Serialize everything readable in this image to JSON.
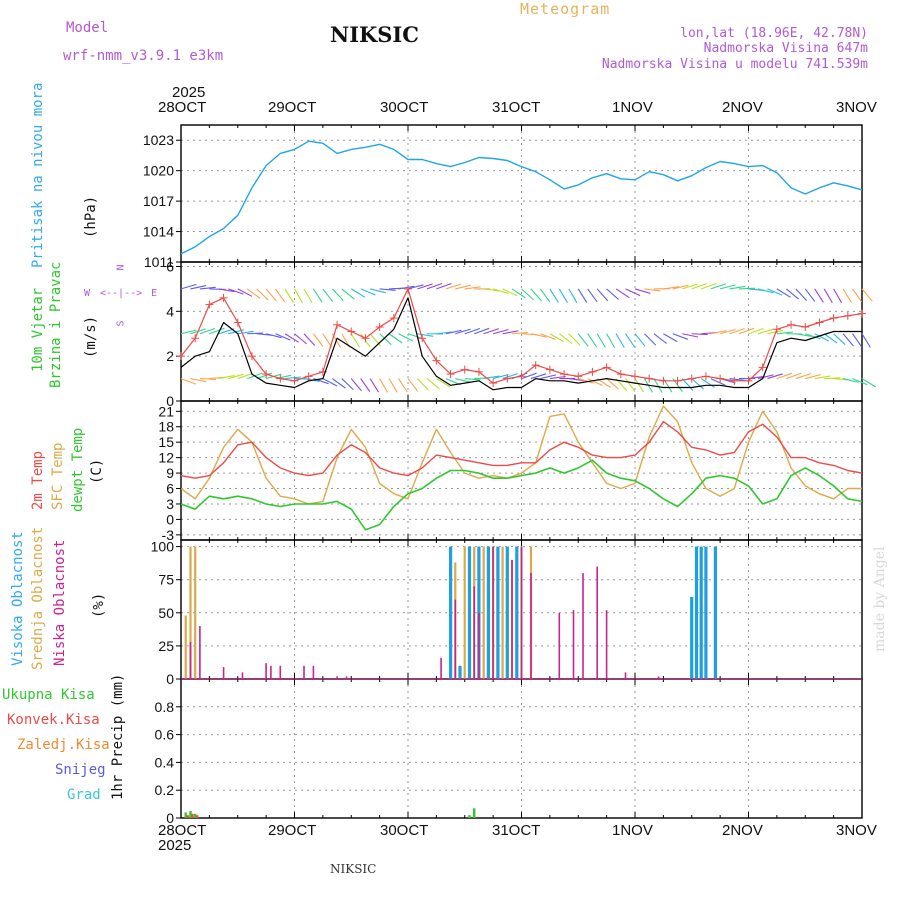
{
  "header": {
    "model_label": "Model",
    "model_name": "wrf-nmm_v3.9.1 e3km",
    "station": "NIKSIC",
    "meteogram_label": "Meteogram",
    "coords": "lon,lat (18.96E, 42.78N)",
    "altitude": "Nadmorska Visina 647m",
    "model_altitude": "Nadmorska Visina u modelu 741.539m",
    "year_top": "2025",
    "year_bottom": "2025",
    "footer_station": "NIKSIC",
    "made_by": "made by Angel"
  },
  "axis_dates": [
    "28OCT",
    "29OCT",
    "30OCT",
    "31OCT",
    "1NOV",
    "2NOV",
    "3NOV"
  ],
  "panel_labels": {
    "pressure": {
      "name": "Pritisak na nivou mora",
      "unit": "(hPa)"
    },
    "wind": {
      "name1": "10m Vjetar",
      "name2": "Brzina i Pravac",
      "unit": "(m/s)"
    },
    "wind_compass": {
      "n": "N",
      "w": "W",
      "e": "E",
      "s": "S"
    },
    "temp": {
      "name1": "2m Temp",
      "name2": "SFC Temp",
      "name3": "dewpt Temp",
      "unit": "(C)"
    },
    "cloud": {
      "name1": "Visoka Oblacnost",
      "name2": "Srednja Oblacnost",
      "name3": "Niska Oblacnost",
      "unit": "(%)"
    },
    "precip": {
      "name": "1hr Precip (mm)"
    }
  },
  "precip_legend": [
    "Ukupna Kisa",
    "Konvek.Kisa",
    "Zaledj.Kisa",
    "Snijeg",
    "Grad"
  ],
  "colors": {
    "pressure": "#1ea7e6",
    "temp2m": "#ec4b48",
    "sfc": "#dea94a",
    "dewpt": "#2fc82f",
    "wind_speed": "#000000",
    "gust": "#ec4b48",
    "cloud_high": "#1e9fe0",
    "cloud_mid": "#d9a94a",
    "cloud_low": "#c8238f",
    "rain_total": "#2fc82f",
    "rain_conv": "#ec4b48",
    "freezing": "#f08a2e",
    "snow": "#5a5ae0",
    "hail": "#39c8c8",
    "pressure_label": "#33aaee",
    "wind_label": "#2fc82f",
    "compass": "#b15ad6",
    "temp2m_label": "#ec4b48",
    "sfc_label": "#dea94a",
    "dewpt_label": "#2fc82f",
    "cloud_high_label": "#33aaee",
    "cloud_mid_label": "#dea94a",
    "cloud_low_label": "#d0208e",
    "legend_colors": [
      "#2fc82f",
      "#ec4b48",
      "#f08a2e",
      "#5a5ae0",
      "#39c8c8"
    ]
  },
  "chart_data": [
    {
      "type": "line",
      "title": "Pritisak na nivou mora",
      "ylabel": "(hPa)",
      "ylim": [
        1011,
        1024.5
      ],
      "yticks": [
        1011,
        1014,
        1017,
        1020,
        1023
      ],
      "x_unit": "hours from 28OCT 00UTC",
      "x": [
        0,
        3,
        6,
        9,
        12,
        15,
        18,
        21,
        24,
        27,
        30,
        33,
        36,
        39,
        42,
        45,
        48,
        51,
        54,
        57,
        60,
        63,
        66,
        69,
        72,
        75,
        78,
        81,
        84,
        87,
        90,
        93,
        96,
        99,
        102,
        105,
        108,
        111,
        114,
        117,
        120,
        123,
        126,
        129,
        132,
        135,
        138,
        141,
        144
      ],
      "values": [
        1011.8,
        1012.5,
        1013.5,
        1014.3,
        1015.6,
        1018.3,
        1020.5,
        1021.7,
        1022.1,
        1022.9,
        1022.7,
        1021.7,
        1022.1,
        1022.3,
        1022.6,
        1022.1,
        1021.1,
        1021.1,
        1020.7,
        1020.4,
        1020.8,
        1021.3,
        1021.2,
        1021.0,
        1020.4,
        1019.9,
        1019.1,
        1018.2,
        1018.6,
        1019.3,
        1019.7,
        1019.2,
        1019.1,
        1019.9,
        1019.6,
        1019.0,
        1019.5,
        1020.3,
        1020.9,
        1020.7,
        1020.4,
        1020.5,
        1019.8,
        1018.3,
        1017.7,
        1018.3,
        1018.8,
        1018.5,
        1018.1
      ]
    },
    {
      "type": "line",
      "title": "10m Vjetar Brzina i Pravac",
      "ylabel": "(m/s)",
      "ylim": [
        0,
        6.2
      ],
      "yticks": [
        0,
        2,
        4,
        6
      ],
      "barb_rows": [
        1,
        3,
        5
      ],
      "series": [
        {
          "name": "wind_speed",
          "x": [
            0,
            3,
            6,
            9,
            12,
            15,
            18,
            21,
            24,
            27,
            30,
            33,
            36,
            39,
            42,
            45,
            48,
            51,
            54,
            57,
            60,
            63,
            66,
            69,
            72,
            75,
            78,
            81,
            84,
            87,
            90,
            93,
            96,
            99,
            102,
            105,
            108,
            111,
            114,
            117,
            120,
            123,
            126,
            129,
            132,
            135,
            138,
            141,
            144
          ],
          "values": [
            1.5,
            2.0,
            2.2,
            3.5,
            3.0,
            1.2,
            0.8,
            0.7,
            0.6,
            0.9,
            1.0,
            2.8,
            2.4,
            2.0,
            2.6,
            3.2,
            4.6,
            2.0,
            1.1,
            0.7,
            0.8,
            0.9,
            0.5,
            0.6,
            0.6,
            1.0,
            0.9,
            0.9,
            0.8,
            0.9,
            1.0,
            0.9,
            0.8,
            0.7,
            0.6,
            0.6,
            0.6,
            0.7,
            0.7,
            0.6,
            0.6,
            1.0,
            2.6,
            2.8,
            2.7,
            2.9,
            3.1,
            3.1,
            3.1
          ]
        },
        {
          "name": "gust",
          "x": [
            0,
            3,
            6,
            9,
            12,
            15,
            18,
            21,
            24,
            27,
            30,
            33,
            36,
            39,
            42,
            45,
            48,
            51,
            54,
            57,
            60,
            63,
            66,
            69,
            72,
            75,
            78,
            81,
            84,
            87,
            90,
            93,
            96,
            99,
            102,
            105,
            108,
            111,
            114,
            117,
            120,
            123,
            126,
            129,
            132,
            135,
            138,
            141,
            144
          ],
          "values": [
            2.0,
            2.8,
            4.3,
            4.6,
            3.5,
            2.0,
            1.2,
            1.0,
            0.9,
            1.1,
            1.3,
            3.4,
            3.1,
            2.8,
            3.3,
            3.7,
            5.0,
            2.8,
            1.8,
            1.2,
            1.4,
            1.3,
            0.8,
            1.0,
            1.1,
            1.6,
            1.4,
            1.2,
            1.1,
            1.3,
            1.5,
            1.2,
            1.1,
            1.0,
            0.9,
            0.9,
            1.0,
            1.1,
            1.0,
            0.9,
            0.9,
            1.5,
            3.2,
            3.4,
            3.3,
            3.5,
            3.7,
            3.8,
            3.9
          ]
        }
      ]
    },
    {
      "type": "line",
      "title": "2m Temp / SFC Temp / dewpt Temp",
      "ylabel": "(C)",
      "ylim": [
        -4,
        23
      ],
      "yticks": [
        -3,
        0,
        3,
        6,
        9,
        12,
        15,
        18,
        21
      ],
      "series": [
        {
          "name": "2m Temp",
          "x": [
            0,
            3,
            6,
            9,
            12,
            15,
            18,
            21,
            24,
            27,
            30,
            33,
            36,
            39,
            42,
            45,
            48,
            51,
            54,
            57,
            60,
            63,
            66,
            69,
            72,
            75,
            78,
            81,
            84,
            87,
            90,
            93,
            96,
            99,
            102,
            105,
            108,
            111,
            114,
            117,
            120,
            123,
            126,
            129,
            132,
            135,
            138,
            141,
            144
          ],
          "values": [
            8.5,
            8.0,
            8.5,
            11.0,
            14.5,
            15.0,
            12.0,
            10.0,
            9.0,
            8.5,
            9.0,
            12.5,
            14.5,
            13.0,
            10.0,
            9.0,
            8.5,
            10.0,
            12.5,
            12.0,
            11.5,
            11.0,
            10.5,
            10.5,
            11.0,
            11.0,
            13.5,
            15.0,
            14.0,
            12.5,
            12.0,
            12.0,
            12.5,
            15.0,
            19.0,
            17.0,
            14.0,
            13.5,
            12.5,
            13.0,
            17.0,
            18.5,
            16.0,
            12.0,
            12.0,
            11.0,
            10.5,
            9.5,
            9.0
          ]
        },
        {
          "name": "SFC Temp",
          "x": [
            0,
            3,
            6,
            9,
            12,
            15,
            18,
            21,
            24,
            27,
            30,
            33,
            36,
            39,
            42,
            45,
            48,
            51,
            54,
            57,
            60,
            63,
            66,
            69,
            72,
            75,
            78,
            81,
            84,
            87,
            90,
            93,
            96,
            99,
            102,
            105,
            108,
            111,
            114,
            117,
            120,
            123,
            126,
            129,
            132,
            135,
            138,
            141,
            144
          ],
          "values": [
            6.0,
            4.0,
            8.0,
            14.0,
            17.5,
            15.0,
            8.0,
            4.5,
            4.0,
            3.0,
            3.5,
            12.0,
            17.5,
            14.0,
            7.0,
            5.0,
            4.0,
            11.0,
            17.5,
            13.0,
            9.0,
            8.0,
            8.5,
            8.0,
            9.0,
            11.0,
            20.0,
            20.5,
            15.0,
            11.0,
            7.0,
            6.0,
            7.0,
            16.0,
            22.0,
            19.0,
            11.0,
            6.0,
            4.5,
            6.0,
            15.0,
            21.0,
            17.0,
            10.0,
            6.5,
            5.0,
            4.0,
            6.0,
            6.0
          ]
        },
        {
          "name": "dewpt Temp",
          "x": [
            0,
            3,
            6,
            9,
            12,
            15,
            18,
            21,
            24,
            27,
            30,
            33,
            36,
            39,
            42,
            45,
            48,
            51,
            54,
            57,
            60,
            63,
            66,
            69,
            72,
            75,
            78,
            81,
            84,
            87,
            90,
            93,
            96,
            99,
            102,
            105,
            108,
            111,
            114,
            117,
            120,
            123,
            126,
            129,
            132,
            135,
            138,
            141,
            144
          ],
          "values": [
            3.0,
            2.0,
            4.5,
            4.0,
            4.5,
            4.0,
            3.0,
            2.5,
            3.0,
            3.0,
            3.0,
            3.5,
            2.0,
            -2.0,
            -1.0,
            2.5,
            5.0,
            6.0,
            8.0,
            9.5,
            9.5,
            9.0,
            8.0,
            8.0,
            8.5,
            9.0,
            10.0,
            9.0,
            10.0,
            11.5,
            9.0,
            8.0,
            7.5,
            6.0,
            4.0,
            2.5,
            5.0,
            8.0,
            8.5,
            8.0,
            6.5,
            3.0,
            4.0,
            8.5,
            10.0,
            8.5,
            6.5,
            4.0,
            3.5
          ]
        }
      ]
    },
    {
      "type": "bar",
      "title": "Visoka / Srednja / Niska Oblacnost",
      "ylabel": "(%)",
      "ylim": [
        0,
        105
      ],
      "yticks": [
        0,
        25,
        50,
        75,
        100
      ],
      "series": [
        {
          "name": "Visoka Oblacnost",
          "x": [
            57,
            59,
            61,
            63,
            65,
            67,
            69,
            71,
            108,
            109,
            110,
            111,
            113
          ],
          "values": [
            100,
            10,
            100,
            100,
            100,
            100,
            100,
            100,
            62,
            100,
            100,
            100,
            100
          ]
        },
        {
          "name": "Srednja Oblacnost",
          "x": [
            1,
            2,
            3,
            58,
            60,
            62,
            64,
            66,
            68,
            70,
            72,
            74
          ],
          "values": [
            48,
            100,
            100,
            88,
            100,
            100,
            100,
            100,
            100,
            90,
            100,
            100
          ]
        },
        {
          "name": "Niska Oblacnost",
          "x": [
            2,
            4,
            9,
            13,
            18,
            19,
            21,
            26,
            28,
            33,
            35,
            55,
            58,
            62,
            63,
            66,
            70,
            72,
            74,
            80,
            83,
            85,
            88,
            90,
            94,
            101
          ],
          "values": [
            28,
            40,
            9,
            5,
            12,
            10,
            10,
            10,
            10,
            2,
            2,
            16,
            60,
            70,
            50,
            100,
            90,
            100,
            80,
            50,
            52,
            80,
            85,
            52,
            5,
            2
          ]
        }
      ]
    },
    {
      "type": "bar",
      "title": "1hr Precip (mm)",
      "ylabel": "1hr Precip (mm)",
      "ylim": [
        0,
        1.0
      ],
      "yticks": [
        0,
        0.2,
        0.4,
        0.6,
        0.8
      ],
      "series": [
        {
          "name": "Ukupna Kisa",
          "x": [
            1,
            2,
            3,
            61,
            62
          ],
          "values": [
            0.04,
            0.05,
            0.03,
            0.02,
            0.07
          ]
        },
        {
          "name": "Konvek.Kisa",
          "x": [
            1,
            2,
            3
          ],
          "values": [
            0.02,
            0.03,
            0.02
          ]
        },
        {
          "name": "Zaledj.Kisa",
          "x": [],
          "values": []
        },
        {
          "name": "Snijeg",
          "x": [],
          "values": []
        },
        {
          "name": "Grad",
          "x": [],
          "values": []
        }
      ]
    }
  ]
}
